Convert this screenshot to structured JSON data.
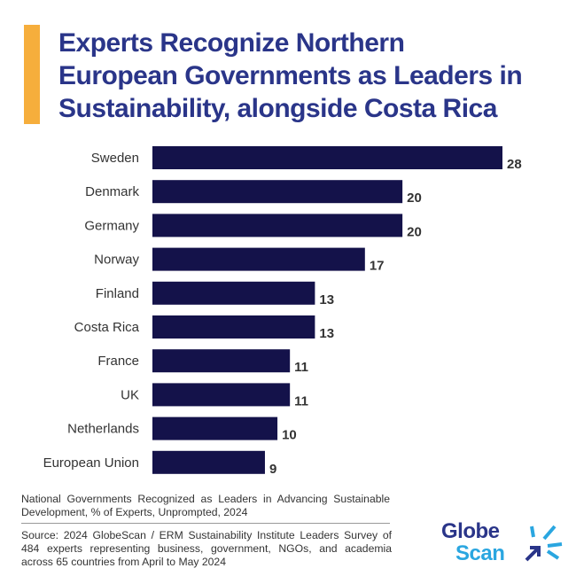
{
  "title_lines": [
    "Experts Recognize Northern",
    "European Governments as Leaders in",
    "Sustainability, alongside Costa Rica"
  ],
  "colors": {
    "accent": "#f6ae3c",
    "title": "#2a3589",
    "bar": "#14124a",
    "logo_dark": "#2a3589",
    "logo_light": "#2aa6e0"
  },
  "chart_data": {
    "type": "bar",
    "orientation": "horizontal",
    "categories": [
      "Sweden",
      "Denmark",
      "Germany",
      "Norway",
      "Finland",
      "Costa Rica",
      "France",
      "UK",
      "Netherlands",
      "European Union"
    ],
    "values": [
      28,
      20,
      20,
      17,
      13,
      13,
      11,
      11,
      10,
      9
    ],
    "data_labels": true,
    "grid": false
  },
  "note": "National Governments Recognized as Leaders in Advancing Sustainable Development, % of Experts, Unprompted, 2024",
  "source": "Source: 2024 GlobeScan / ERM Sustainability Institute Leaders Survey of 484 experts representing business, government, NGOs, and academia across 65 countries from April to May 2024",
  "logo": {
    "line1": "Globe",
    "line2": "Scan"
  }
}
